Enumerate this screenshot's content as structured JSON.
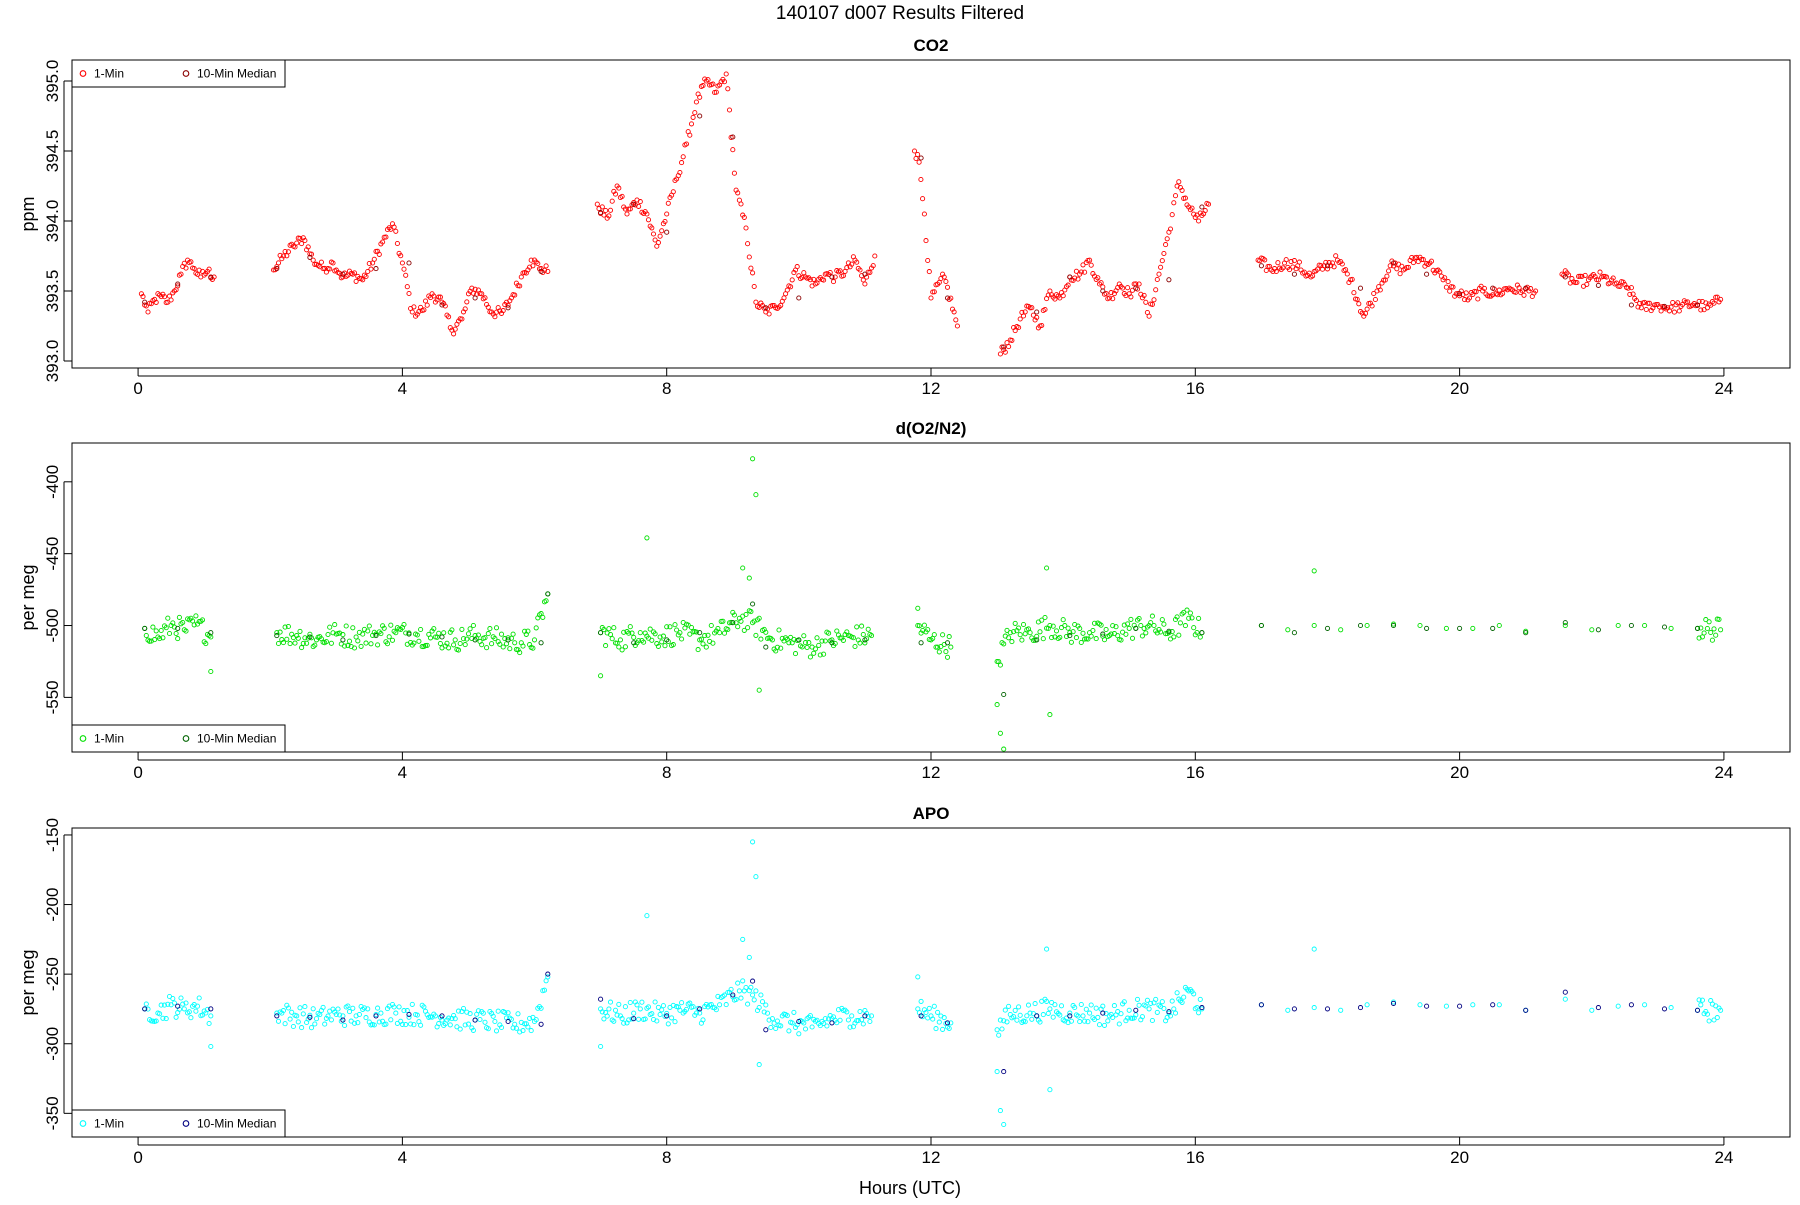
{
  "figure": {
    "suptitle": "140107   d007   Results Filtered",
    "xlabel": "Hours (UTC)"
  },
  "chart_data": [
    {
      "type": "scatter",
      "title": "CO2",
      "xlabel": "",
      "ylabel": "ppm",
      "xlim": [
        -1.0,
        25.0
      ],
      "ylim": [
        392.95,
        395.15
      ],
      "xticks": [
        0,
        4,
        8,
        12,
        16,
        20,
        24
      ],
      "yticks": [
        393.0,
        393.5,
        394.0,
        394.5,
        395.0
      ],
      "ytick_labels": [
        "393.0",
        "393.5",
        "394.0",
        "394.5",
        "395.0"
      ],
      "legend": {
        "position": "top-left",
        "entries": [
          "1-Min",
          "10-Min Median"
        ]
      },
      "colors": {
        "one_min": "#ff0000",
        "median": "#8b0000"
      },
      "series": [
        {
          "name": "1-Min",
          "x": [
            0.05,
            0.15,
            0.25,
            0.35,
            0.45,
            0.55,
            0.65,
            0.75,
            0.85,
            0.95,
            1.05,
            1.15,
            2.05,
            2.2,
            2.35,
            2.5,
            2.65,
            2.8,
            2.95,
            3.1,
            3.25,
            3.4,
            3.55,
            3.7,
            3.85,
            4.0,
            4.15,
            4.3,
            4.45,
            4.6,
            4.75,
            4.9,
            5.05,
            5.2,
            5.35,
            5.5,
            5.65,
            5.8,
            5.95,
            6.1,
            6.2,
            6.95,
            7.1,
            7.25,
            7.4,
            7.55,
            7.7,
            7.85,
            8.0,
            8.15,
            8.3,
            8.45,
            8.6,
            8.75,
            8.9,
            9.05,
            9.2,
            9.35,
            9.5,
            9.65,
            9.8,
            9.95,
            10.1,
            10.25,
            10.4,
            10.55,
            10.7,
            10.85,
            11.0,
            11.15,
            11.75,
            11.82,
            11.9,
            12.0,
            12.2,
            12.4,
            13.05,
            13.2,
            13.35,
            13.5,
            13.65,
            13.8,
            13.95,
            14.1,
            14.25,
            14.4,
            14.55,
            14.7,
            14.85,
            15.0,
            15.15,
            15.3,
            15.45,
            15.6,
            15.75,
            15.9,
            16.05,
            16.2,
            16.95,
            17.15,
            17.35,
            17.55,
            17.75,
            17.95,
            18.15,
            18.35,
            18.55,
            18.75,
            18.95,
            19.15,
            19.35,
            19.55,
            19.75,
            19.95,
            20.15,
            20.35,
            20.55,
            20.75,
            20.95,
            21.15,
            21.55,
            21.75,
            21.95,
            22.15,
            22.35,
            22.55,
            22.75,
            22.95,
            23.15,
            23.35,
            23.55,
            23.75,
            23.95
          ],
          "y": [
            393.48,
            393.35,
            393.44,
            393.46,
            393.42,
            393.5,
            393.62,
            393.72,
            393.66,
            393.6,
            393.64,
            393.6,
            393.65,
            393.75,
            393.82,
            393.88,
            393.72,
            393.66,
            393.7,
            393.6,
            393.62,
            393.58,
            393.7,
            393.85,
            393.98,
            393.7,
            393.35,
            393.36,
            393.48,
            393.42,
            393.22,
            393.3,
            393.52,
            393.48,
            393.35,
            393.34,
            393.45,
            393.6,
            393.72,
            393.66,
            393.64,
            394.12,
            394.02,
            394.25,
            394.05,
            394.15,
            394.05,
            393.82,
            394.05,
            394.3,
            394.55,
            394.85,
            395.0,
            394.92,
            395.05,
            394.22,
            393.95,
            393.42,
            393.35,
            393.38,
            393.48,
            393.65,
            393.6,
            393.55,
            393.62,
            393.6,
            393.64,
            393.72,
            393.55,
            393.75,
            394.5,
            394.42,
            394.05,
            393.45,
            393.6,
            393.25,
            393.05,
            393.15,
            393.3,
            393.38,
            393.25,
            393.5,
            393.45,
            393.6,
            393.62,
            393.72,
            393.55,
            393.45,
            393.55,
            393.48,
            393.55,
            393.32,
            393.62,
            393.92,
            394.28,
            394.1,
            394.0,
            394.12,
            393.72,
            393.65,
            393.7,
            393.68,
            393.6,
            393.68,
            393.72,
            393.58,
            393.32,
            393.5,
            393.68,
            393.65,
            393.74,
            393.7,
            393.58,
            393.48,
            393.45,
            393.5,
            393.48,
            393.52,
            393.5,
            393.5,
            393.62,
            393.56,
            393.58,
            393.6,
            393.55,
            393.52,
            393.38,
            393.4,
            393.38,
            393.39,
            393.41,
            393.38,
            393.44
          ],
          "jitter": 0.08
        },
        {
          "name": "10-Min Median",
          "x": [
            0.1,
            0.6,
            1.1,
            2.1,
            2.6,
            3.1,
            3.6,
            4.1,
            4.6,
            5.1,
            5.6,
            6.1,
            7.0,
            7.5,
            8.0,
            8.5,
            9.0,
            9.5,
            10.0,
            10.5,
            11.0,
            11.85,
            12.25,
            13.1,
            13.6,
            14.1,
            14.6,
            15.1,
            15.6,
            16.1,
            17.0,
            17.5,
            18.0,
            18.5,
            19.0,
            19.5,
            20.0,
            20.5,
            21.0,
            21.6,
            22.1,
            22.6,
            23.1,
            23.6
          ],
          "y": [
            393.42,
            393.55,
            393.6,
            393.66,
            393.74,
            393.62,
            393.66,
            393.7,
            393.4,
            393.45,
            393.38,
            393.64,
            394.06,
            394.12,
            393.92,
            394.75,
            394.6,
            393.38,
            393.45,
            393.6,
            393.62,
            394.45,
            393.45,
            393.1,
            393.35,
            393.6,
            393.5,
            393.52,
            393.58,
            394.1,
            393.68,
            393.62,
            393.68,
            393.52,
            393.7,
            393.62,
            393.48,
            393.52,
            393.52,
            393.6,
            393.54,
            393.4,
            393.39,
            393.4
          ]
        }
      ]
    },
    {
      "type": "scatter",
      "title": "d(O2/N2)",
      "xlabel": "",
      "ylabel": "per meg",
      "xlim": [
        -1.0,
        25.0
      ],
      "ylim": [
        -588.0,
        -373.0
      ],
      "xticks": [
        0,
        4,
        8,
        12,
        16,
        20,
        24
      ],
      "yticks": [
        -550,
        -500,
        -450,
        -400
      ],
      "ytick_labels": [
        "-550",
        "-500",
        "-450",
        "-400"
      ],
      "legend": {
        "position": "bottom-left",
        "entries": [
          "1-Min",
          "10-Min Median"
        ]
      },
      "colors": {
        "one_min": "#00e000",
        "median": "#006400"
      },
      "series": [
        {
          "name": "1-Min",
          "x": [
            0.1,
            0.3,
            0.5,
            0.7,
            0.9,
            1.1,
            2.1,
            2.4,
            2.7,
            3.0,
            3.3,
            3.6,
            3.9,
            4.2,
            4.5,
            4.8,
            5.1,
            5.4,
            5.7,
            6.0,
            6.2,
            7.0,
            7.3,
            7.6,
            7.9,
            8.2,
            8.5,
            8.8,
            9.1,
            9.3,
            9.6,
            9.9,
            10.2,
            10.5,
            10.8,
            11.1,
            11.8,
            12.0,
            12.3,
            13.0,
            13.2,
            13.5,
            13.8,
            14.1,
            14.4,
            14.7,
            15.0,
            15.3,
            15.6,
            15.9,
            16.1,
            17.0,
            17.4,
            17.8,
            18.2,
            18.6,
            19.0,
            19.4,
            19.8,
            20.2,
            20.6,
            21.0,
            21.6,
            22.0,
            22.4,
            22.8,
            23.2,
            23.6,
            23.95
          ],
          "y": [
            -502,
            -508,
            -500,
            -503,
            -499,
            -508,
            -505,
            -507,
            -510,
            -506,
            -508,
            -506,
            -505,
            -506,
            -508,
            -510,
            -507,
            -509,
            -512,
            -510,
            -478,
            -505,
            -510,
            -505,
            -508,
            -505,
            -510,
            -505,
            -495,
            -498,
            -510,
            -512,
            -515,
            -510,
            -508,
            -507,
            -500,
            -510,
            -515,
            -525,
            -505,
            -505,
            -500,
            -505,
            -505,
            -507,
            -502,
            -500,
            -505,
            -495,
            -505,
            -500,
            -503,
            -500,
            -503,
            -500,
            -499,
            -500,
            -502,
            -502,
            -500,
            -504,
            -500,
            -503,
            -500,
            -500,
            -502,
            -502,
            -503
          ],
          "spread": 8
        },
        {
          "name": "outliers",
          "x": [
            7.7,
            9.15,
            9.25,
            9.3,
            9.35,
            9.4,
            7.0,
            13.0,
            13.05,
            13.1,
            13.75,
            13.8,
            17.8,
            11.8,
            1.1
          ],
          "y": [
            -439,
            -460,
            -467,
            -384,
            -409,
            -545,
            -535,
            -555,
            -575,
            -586,
            -460,
            -562,
            -462,
            -488,
            -532
          ]
        },
        {
          "name": "10-Min Median",
          "x": [
            0.1,
            0.6,
            1.1,
            2.1,
            2.6,
            3.1,
            3.6,
            4.1,
            4.6,
            5.1,
            5.6,
            6.1,
            6.2,
            7.0,
            7.5,
            8.0,
            8.5,
            9.0,
            9.3,
            9.5,
            10.0,
            10.5,
            11.0,
            11.85,
            12.25,
            13.1,
            13.6,
            14.1,
            14.6,
            15.1,
            15.6,
            16.1,
            17.0,
            17.5,
            18.0,
            18.5,
            19.0,
            19.5,
            20.0,
            20.5,
            21.0,
            21.6,
            22.1,
            22.6,
            23.1,
            23.6
          ],
          "y": [
            -502,
            -502,
            -505,
            -507,
            -508,
            -510,
            -507,
            -506,
            -508,
            -510,
            -510,
            -512,
            -478,
            -505,
            -512,
            -510,
            -505,
            -498,
            -485,
            -515,
            -510,
            -512,
            -510,
            -512,
            -512,
            -548,
            -510,
            -507,
            -506,
            -502,
            -504,
            -505,
            -500,
            -505,
            -502,
            -500,
            -500,
            -502,
            -502,
            -502,
            -505,
            -498,
            -503,
            -500,
            -501,
            -502
          ]
        }
      ]
    },
    {
      "type": "scatter",
      "title": "APO",
      "xlabel": "Hours (UTC)",
      "ylabel": "per meg",
      "xlim": [
        -1.0,
        25.0
      ],
      "ylim": [
        -367.0,
        -145.0
      ],
      "xticks": [
        0,
        4,
        8,
        12,
        16,
        20,
        24
      ],
      "yticks": [
        -350,
        -300,
        -250,
        -200,
        -150
      ],
      "ytick_labels": [
        "-350",
        "-300",
        "-250",
        "-200",
        "-150"
      ],
      "legend": {
        "position": "bottom-left",
        "entries": [
          "1-Min",
          "10-Min Median"
        ]
      },
      "colors": {
        "one_min": "#00ffff",
        "median": "#000080"
      },
      "series": [
        {
          "name": "1-Min",
          "x": [
            0.1,
            0.3,
            0.5,
            0.7,
            0.9,
            1.1,
            2.1,
            2.4,
            2.7,
            3.0,
            3.3,
            3.6,
            3.9,
            4.2,
            4.5,
            4.8,
            5.1,
            5.4,
            5.7,
            6.0,
            6.2,
            7.0,
            7.3,
            7.6,
            7.9,
            8.2,
            8.5,
            8.8,
            9.1,
            9.3,
            9.6,
            9.9,
            10.2,
            10.5,
            10.8,
            11.1,
            11.8,
            12.0,
            12.3,
            13.0,
            13.2,
            13.5,
            13.8,
            14.1,
            14.4,
            14.7,
            15.0,
            15.3,
            15.6,
            15.9,
            16.1,
            17.0,
            17.4,
            17.8,
            18.2,
            18.6,
            19.0,
            19.4,
            19.8,
            20.2,
            20.6,
            21.0,
            21.6,
            22.0,
            22.4,
            22.8,
            23.2,
            23.6,
            23.95
          ],
          "y": [
            -275,
            -278,
            -272,
            -275,
            -273,
            -280,
            -278,
            -280,
            -282,
            -279,
            -280,
            -279,
            -278,
            -279,
            -280,
            -282,
            -283,
            -284,
            -286,
            -284,
            -252,
            -275,
            -280,
            -275,
            -279,
            -276,
            -278,
            -272,
            -262,
            -265,
            -282,
            -285,
            -288,
            -282,
            -280,
            -280,
            -275,
            -280,
            -285,
            -290,
            -279,
            -278,
            -275,
            -278,
            -278,
            -280,
            -276,
            -275,
            -278,
            -262,
            -275,
            -272,
            -276,
            -274,
            -276,
            -272,
            -270,
            -272,
            -273,
            -272,
            -272,
            -276,
            -268,
            -276,
            -273,
            -272,
            -274,
            -276,
            -276
          ],
          "spread": 8
        },
        {
          "name": "outliers",
          "x": [
            7.7,
            9.15,
            9.25,
            9.3,
            9.35,
            9.4,
            7.0,
            13.0,
            13.05,
            13.1,
            13.75,
            13.8,
            17.8,
            11.8,
            1.1
          ],
          "y": [
            -208,
            -225,
            -238,
            -155,
            -180,
            -315,
            -302,
            -320,
            -348,
            -358,
            -232,
            -333,
            -232,
            -252,
            -302
          ]
        },
        {
          "name": "10-Min Median",
          "x": [
            0.1,
            0.6,
            1.1,
            2.1,
            2.6,
            3.1,
            3.6,
            4.1,
            4.6,
            5.1,
            5.6,
            6.1,
            6.2,
            7.0,
            7.5,
            8.0,
            8.5,
            9.0,
            9.3,
            9.5,
            10.0,
            10.5,
            11.0,
            11.85,
            12.25,
            13.1,
            13.6,
            14.1,
            14.6,
            15.1,
            15.6,
            16.1,
            17.0,
            17.5,
            18.0,
            18.5,
            19.0,
            19.5,
            20.0,
            20.5,
            21.0,
            21.6,
            22.1,
            22.6,
            23.1,
            23.6
          ],
          "y": [
            -275,
            -273,
            -275,
            -280,
            -281,
            -283,
            -280,
            -279,
            -280,
            -283,
            -284,
            -286,
            -250,
            -268,
            -282,
            -280,
            -275,
            -265,
            -255,
            -290,
            -284,
            -285,
            -280,
            -280,
            -285,
            -320,
            -280,
            -280,
            -278,
            -276,
            -277,
            -274,
            -272,
            -275,
            -275,
            -274,
            -271,
            -273,
            -273,
            -272,
            -276,
            -263,
            -274,
            -272,
            -275,
            -276
          ]
        }
      ]
    }
  ]
}
